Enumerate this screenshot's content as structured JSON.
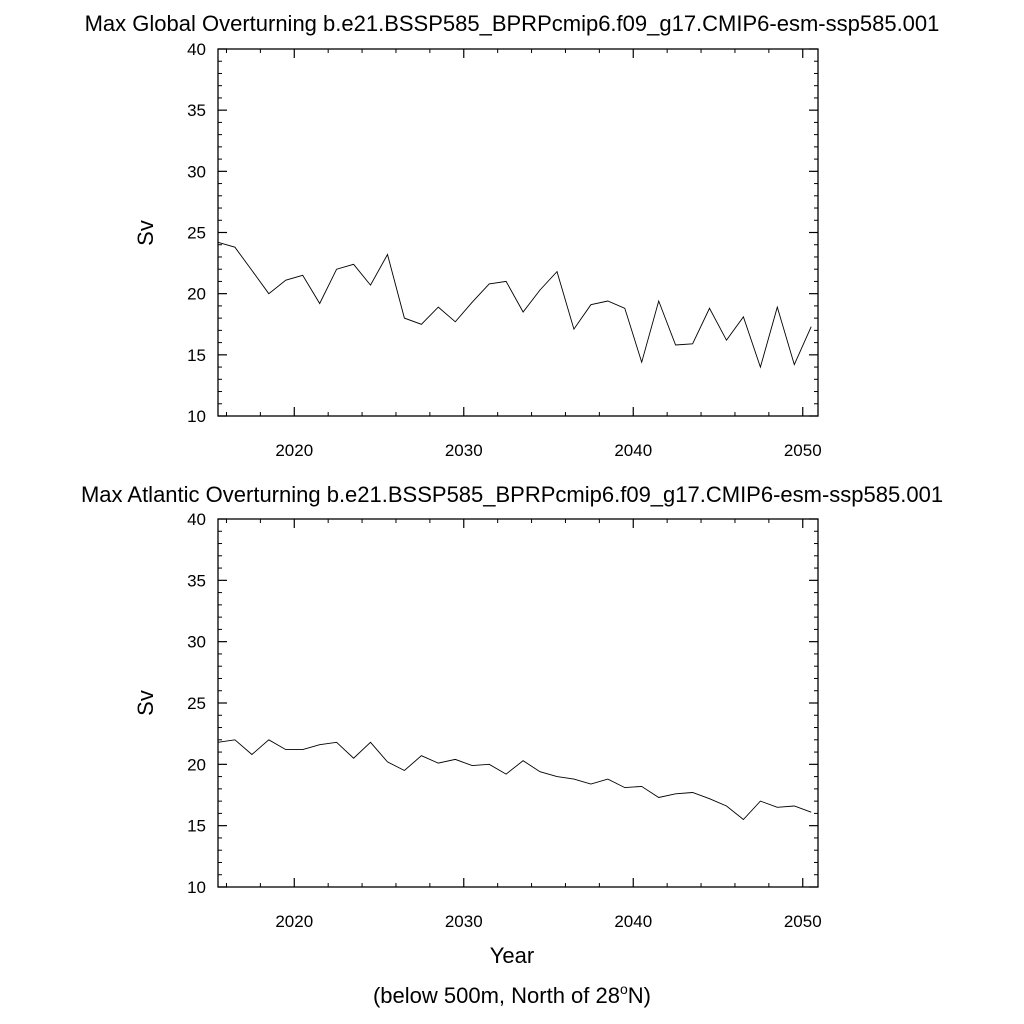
{
  "charts": [
    {
      "title": "Max Global Overturning b.e21.BSSP585_BPRPcmip6.f09_g17.CMIP6-esm-ssp585.001",
      "ylabel": "Sv"
    },
    {
      "title": "Max Atlantic Overturning b.e21.BSSP585_BPRPcmip6.f09_g17.CMIP6-esm-ssp585.001",
      "ylabel": "Sv"
    }
  ],
  "xlabel": "Year",
  "footnote": {
    "prefix": "(below 500m, North of 28",
    "sup": "o",
    "suffix": "N)"
  },
  "chart_data": [
    {
      "type": "line",
      "title": "Max Global Overturning b.e21.BSSP585_BPRPcmip6.f09_g17.CMIP6-esm-ssp585.001",
      "xlabel": "",
      "ylabel": "Sv",
      "xlim": [
        2015.5,
        2050.9
      ],
      "ylim": [
        10,
        40
      ],
      "xticks": [
        2020,
        2030,
        2040,
        2050
      ],
      "yticks": [
        10,
        15,
        20,
        25,
        30,
        35,
        40
      ],
      "line_color": "#000000",
      "series": [
        {
          "x": [
            2015.5,
            2016.5,
            2017.5,
            2018.5,
            2019.5,
            2020.5,
            2021.5,
            2022.5,
            2023.5,
            2024.5,
            2025.5,
            2026.5,
            2027.5,
            2028.5,
            2029.5,
            2030.5,
            2031.5,
            2032.5,
            2033.5,
            2034.5,
            2035.5,
            2036.5,
            2037.5,
            2038.5,
            2039.5,
            2040.5,
            2041.5,
            2042.5,
            2043.5,
            2044.5,
            2045.5,
            2046.5,
            2047.5,
            2048.5,
            2049.5,
            2050.5
          ],
          "values": [
            24.2,
            23.8,
            21.9,
            20.0,
            21.1,
            21.5,
            19.2,
            22.0,
            22.4,
            20.7,
            23.2,
            18.0,
            17.5,
            18.9,
            17.7,
            19.3,
            20.8,
            21.0,
            18.5,
            20.3,
            21.8,
            17.1,
            19.1,
            19.4,
            18.8,
            14.4,
            19.4,
            15.8,
            15.9,
            18.8,
            16.2,
            18.1,
            14.0,
            18.9,
            14.2,
            17.3
          ]
        }
      ]
    },
    {
      "type": "line",
      "title": "Max Atlantic Overturning b.e21.BSSP585_BPRPcmip6.f09_g17.CMIP6-esm-ssp585.001",
      "xlabel": "Year",
      "ylabel": "Sv",
      "xlim": [
        2015.5,
        2050.9
      ],
      "ylim": [
        10,
        40
      ],
      "xticks": [
        2020,
        2030,
        2040,
        2050
      ],
      "yticks": [
        10,
        15,
        20,
        25,
        30,
        35,
        40
      ],
      "line_color": "#000000",
      "series": [
        {
          "x": [
            2015.5,
            2016.5,
            2017.5,
            2018.5,
            2019.5,
            2020.5,
            2021.5,
            2022.5,
            2023.5,
            2024.5,
            2025.5,
            2026.5,
            2027.5,
            2028.5,
            2029.5,
            2030.5,
            2031.5,
            2032.5,
            2033.5,
            2034.5,
            2035.5,
            2036.5,
            2037.5,
            2038.5,
            2039.5,
            2040.5,
            2041.5,
            2042.5,
            2043.5,
            2044.5,
            2045.5,
            2046.5,
            2047.5,
            2048.5,
            2049.5,
            2050.5
          ],
          "values": [
            21.8,
            22.0,
            20.8,
            22.0,
            21.2,
            21.2,
            21.6,
            21.8,
            20.5,
            21.8,
            20.2,
            19.5,
            20.7,
            20.1,
            20.4,
            19.9,
            20.0,
            19.2,
            20.3,
            19.4,
            19.0,
            18.8,
            18.4,
            18.8,
            18.1,
            18.2,
            17.3,
            17.6,
            17.7,
            17.2,
            16.6,
            15.5,
            17.0,
            16.5,
            16.6,
            16.1
          ]
        }
      ]
    }
  ]
}
